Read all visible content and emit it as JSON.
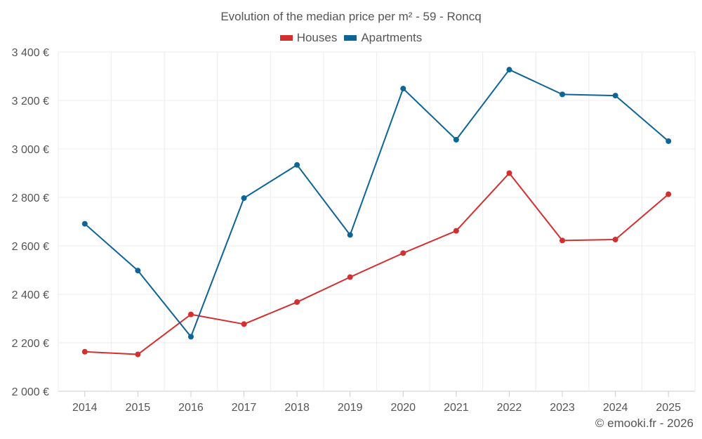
{
  "chart_data": {
    "type": "line",
    "title": "Evolution of the median price per m² - 59 - Roncq",
    "categories": [
      "2014",
      "2015",
      "2016",
      "2017",
      "2018",
      "2019",
      "2020",
      "2021",
      "2022",
      "2023",
      "2024",
      "2025"
    ],
    "series": [
      {
        "name": "Houses",
        "color": "#d32f2f",
        "values": [
          2163,
          2152,
          2317,
          2277,
          2368,
          2471,
          2570,
          2662,
          2900,
          2622,
          2626,
          2813
        ]
      },
      {
        "name": "Apartments",
        "color": "#0d6496",
        "values": [
          2691,
          2498,
          2225,
          2797,
          2934,
          2645,
          3249,
          3038,
          3327,
          3225,
          3220,
          3032
        ]
      }
    ],
    "ylim": [
      2000,
      3400
    ],
    "yticks": [
      2000,
      2200,
      2400,
      2600,
      2800,
      3000,
      3200,
      3400
    ],
    "ytick_labels": [
      "2 000 €",
      "2 200 €",
      "2 400 €",
      "2 600 €",
      "2 800 €",
      "3 000 €",
      "3 200 €",
      "3 400 €"
    ],
    "legend_position": "top-center",
    "grid": true
  },
  "credit": "© emooki.fr - 2026"
}
